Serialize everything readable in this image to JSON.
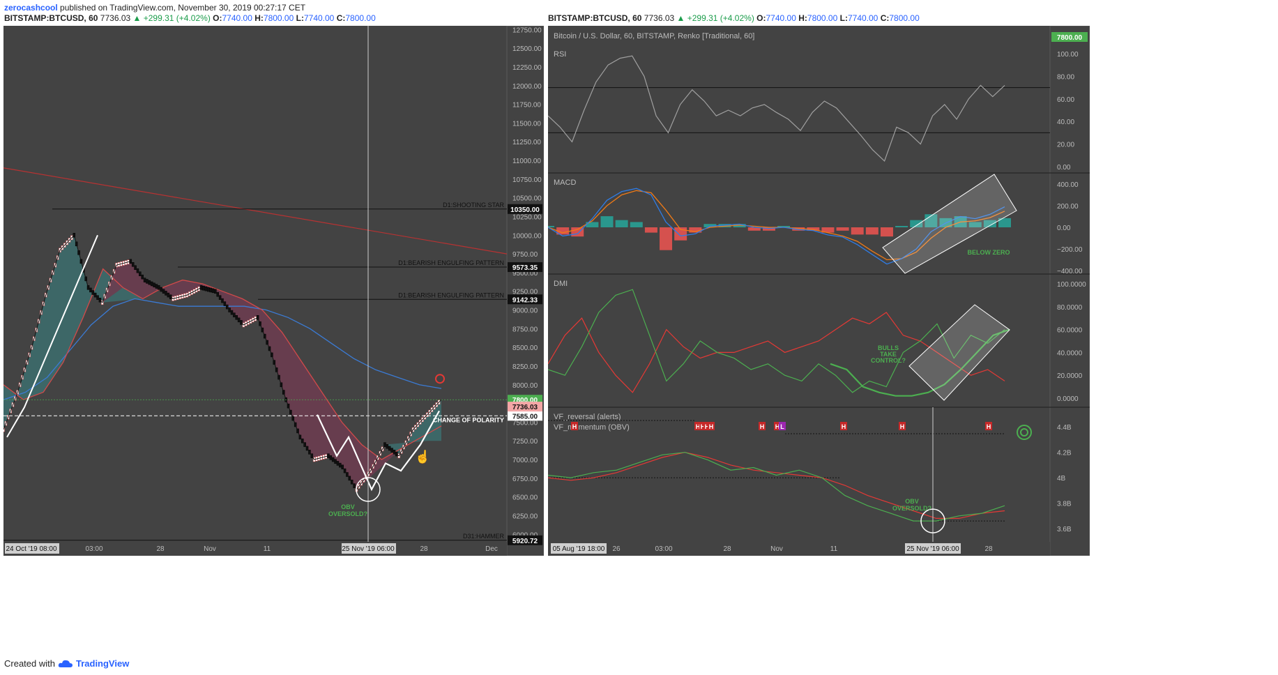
{
  "publish_line": {
    "author": "zerocashcool",
    "text": "published on TradingView.com, November 30, 2019 00:27:17 CET"
  },
  "left_header": {
    "symbol": "BITSTAMP:BTCUSD, 60",
    "price": "7736.03",
    "change": "▲ +299.31 (+4.02%)",
    "o_label": "O:",
    "o": "7740.00",
    "h_label": "H:",
    "h": "7800.00",
    "l_label": "L:",
    "l": "7740.00",
    "c_label": "C:",
    "c": "7800.00"
  },
  "right_header": {
    "symbol": "BITSTAMP:BTCUSD, 60",
    "price": "7736.03",
    "change": "▲ +299.31 (+4.02%)",
    "o_label": "O:",
    "o": "7740.00",
    "h_label": "H:",
    "h": "7800.00",
    "l_label": "L:",
    "l": "7740.00",
    "c_label": "C:",
    "c": "7800.00"
  },
  "footer": {
    "created_with": "Created with",
    "brand": "TradingView",
    "icon": "tradingview-cloud-icon"
  },
  "colors": {
    "panel_bg": "#434343",
    "brick_up": "#ffffff",
    "brick_down": "#111111",
    "fill_teal": "#3d6b6b",
    "fill_maroon": "#6b3d50",
    "ma_blue": "#3b7bd4",
    "ma_red": "#d24a4a",
    "trend_red": "#b83232",
    "green": "#4caf50",
    "orange": "#f07a16",
    "teal": "#26a69a",
    "salmon": "#ef5350",
    "price_tag_green": "#4caf50",
    "price_tag_pink": "#f4a6a6"
  },
  "chart_data": [
    {
      "type": "line",
      "subtype": "renko",
      "name": "main",
      "ylim": [
        5900,
        12800
      ],
      "y_ticks": [
        "12750.00",
        "12500.00",
        "12250.00",
        "12000.00",
        "11750.00",
        "11500.00",
        "11250.00",
        "11000.00",
        "10750.00",
        "10500.00",
        "10250.00",
        "10000.00",
        "9750.00",
        "9500.00",
        "9250.00",
        "9000.00",
        "8750.00",
        "8500.00",
        "8250.00",
        "8000.00",
        "7750.00",
        "7500.00",
        "7250.00",
        "7000.00",
        "6750.00",
        "6500.00",
        "6250.00",
        "6000.00"
      ],
      "x_labels": [
        "24 Oct '19   08:00",
        "03:00",
        "28",
        "Nov",
        "11",
        "25 Nov '19   06:00",
        "28",
        "Dec"
      ],
      "price_path": [
        7400,
        7900,
        8500,
        9200,
        9800,
        10000,
        9300,
        9100,
        9600,
        9650,
        9400,
        9300,
        9150,
        9200,
        9300,
        9250,
        9000,
        8800,
        8900,
        8400,
        7800,
        7300,
        7000,
        7050,
        6900,
        6600,
        6850,
        7200,
        7050,
        7400,
        7600,
        7800
      ],
      "ma_blue": [
        7800,
        7900,
        8100,
        8450,
        8800,
        9050,
        9150,
        9100,
        9050,
        9050,
        9050,
        9050,
        9000,
        8900,
        8750,
        8550,
        8350,
        8200,
        8100,
        8000,
        7950
      ],
      "ma_red": [
        8000,
        7800,
        7900,
        8300,
        8900,
        9550,
        9300,
        9150,
        9300,
        9400,
        9350,
        9250,
        9150,
        9000,
        8700,
        8300,
        7900,
        7500,
        7200,
        7000,
        7150,
        7300,
        7450
      ],
      "horizontal_levels": [
        {
          "label": "D1:SHOOTING STAR",
          "value": 10350.0,
          "tag": "10350.00"
        },
        {
          "label": "D1:BEARISH ENGULFING PATTERN",
          "value": 9573.35,
          "tag": "9573.35"
        },
        {
          "label": "D1:BEARISH ENGULFING PATTERN",
          "value": 9142.33,
          "tag": "9142.33"
        },
        {
          "label": "CHANGE OF POLARITY",
          "value": 7585.0,
          "tag": "7585.00"
        },
        {
          "label": "D31:HAMMER",
          "value": 5920.72,
          "tag": "5920.72"
        }
      ],
      "price_tags": [
        {
          "value": 7800.0,
          "tag": "7800.00"
        },
        {
          "value": 7736.03,
          "tag": "7736.03"
        }
      ],
      "trend_line": [
        10900,
        9750
      ],
      "annotations": [
        "OBV\nOVERSOLD?"
      ],
      "crosshair_x": "25 Nov '19   06:00"
    },
    {
      "type": "line",
      "name": "RSI",
      "title": "Bitcoin / U.S. Dollar, 60, BITSTAMP, Renko [Traditional, 60]",
      "ylim": [
        0,
        100
      ],
      "y_ticks": [
        "100.00",
        "80.00",
        "60.00",
        "40.00",
        "20.00",
        "0.00"
      ],
      "levels": [
        70,
        30
      ],
      "price_tag": "7800.00",
      "values": [
        45,
        35,
        22,
        50,
        75,
        90,
        96,
        98,
        80,
        45,
        30,
        55,
        68,
        58,
        45,
        50,
        45,
        52,
        55,
        48,
        42,
        32,
        48,
        58,
        52,
        40,
        28,
        15,
        5,
        35,
        30,
        20,
        45,
        55,
        42,
        60,
        72,
        62,
        72
      ]
    },
    {
      "type": "bar",
      "name": "MACD",
      "ylim": [
        -420,
        420
      ],
      "y_ticks": [
        "400.00",
        "200.00",
        "0.00",
        "−200.00",
        "−400.00"
      ],
      "macd": [
        0,
        -80,
        -60,
        80,
        250,
        330,
        360,
        300,
        50,
        -80,
        -60,
        10,
        20,
        30,
        0,
        -10,
        0,
        -20,
        -30,
        -70,
        -90,
        -160,
        -250,
        -340,
        -290,
        -200,
        -40,
        40,
        100,
        80,
        120,
        190
      ],
      "signal": [
        0,
        -50,
        -20,
        60,
        200,
        300,
        340,
        320,
        160,
        -20,
        -40,
        0,
        10,
        20,
        10,
        0,
        0,
        -10,
        -20,
        -50,
        -80,
        -130,
        -220,
        -300,
        -290,
        -230,
        -100,
        0,
        50,
        60,
        90,
        150
      ],
      "annotations": [
        "BELOW ZERO"
      ]
    },
    {
      "type": "line",
      "name": "DMI",
      "ylim": [
        0,
        100
      ],
      "y_ticks": [
        "100.0000",
        "80.0000",
        "60.0000",
        "40.0000",
        "20.0000",
        "0.0000"
      ],
      "plus_di": [
        25,
        20,
        45,
        75,
        90,
        95,
        55,
        15,
        30,
        50,
        40,
        35,
        25,
        30,
        20,
        15,
        30,
        20,
        5,
        15,
        10,
        40,
        50,
        65,
        35,
        55,
        48,
        60
      ],
      "minus_di": [
        30,
        55,
        70,
        40,
        20,
        5,
        30,
        60,
        45,
        35,
        40,
        40,
        45,
        50,
        40,
        45,
        50,
        60,
        70,
        65,
        75,
        55,
        50,
        40,
        30,
        20,
        25,
        15
      ],
      "adx": [
        30,
        25,
        10,
        5,
        2,
        2,
        5,
        12,
        25,
        40,
        55,
        60
      ],
      "annotations": [
        "BULLS\nTAKE\nCONTROL?"
      ]
    },
    {
      "type": "line",
      "name": "VF_momentum (OBV)",
      "labels": [
        "VF_reversal (alerts)",
        "VF_momentum (OBV)"
      ],
      "y_ticks": [
        "4.4B",
        "4.2B",
        "4B",
        "3.8B",
        "3.6B"
      ],
      "ylim": [
        3.6,
        4.5
      ],
      "obv": [
        4.02,
        4.0,
        4.04,
        4.06,
        4.12,
        4.18,
        4.2,
        4.14,
        4.06,
        4.08,
        4.02,
        4.06,
        4.0,
        3.86,
        3.78,
        3.72,
        3.66,
        3.66,
        3.7,
        3.72,
        3.78
      ],
      "obv_ma": [
        4.0,
        3.98,
        4.0,
        4.04,
        4.1,
        4.16,
        4.2,
        4.16,
        4.1,
        4.06,
        4.04,
        4.02,
        4.0,
        3.94,
        3.86,
        3.8,
        3.74,
        3.68,
        3.68,
        3.72,
        3.74
      ],
      "alerts": [
        "H",
        "H",
        "H",
        "H",
        "H",
        "H",
        "H",
        "L",
        "H",
        "H",
        "H"
      ],
      "x_labels": [
        "05 Aug '19   18:00",
        "26",
        "03:00",
        "28",
        "Nov",
        "11",
        "25 Nov '19   06:00",
        "28"
      ],
      "annotations": [
        "OBV\nOVERSOLD?"
      ]
    }
  ]
}
